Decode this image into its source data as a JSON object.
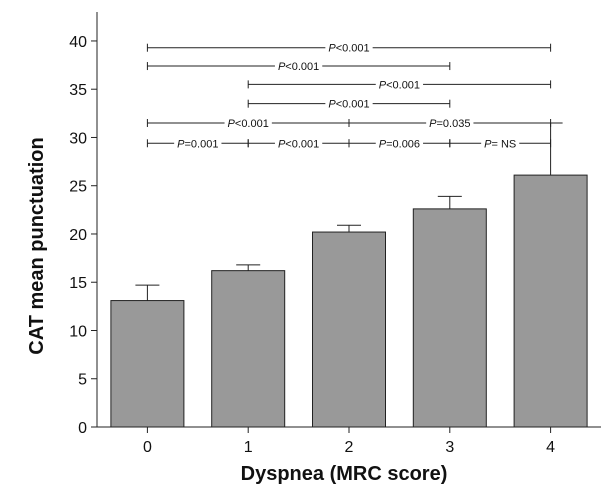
{
  "chart_data": {
    "type": "bar",
    "title": "",
    "xlabel": "Dyspnea (MRC score)",
    "ylabel": "CAT mean punctuation",
    "categories": [
      "0",
      "1",
      "2",
      "3",
      "4"
    ],
    "values": [
      13.1,
      16.2,
      20.2,
      22.6,
      26.1
    ],
    "error_upper": [
      14.7,
      16.8,
      20.9,
      23.9,
      31.5
    ],
    "ylim": [
      0,
      43
    ],
    "yticks": [
      0,
      5,
      10,
      15,
      20,
      25,
      30,
      35,
      40
    ],
    "bar_color": "#999999",
    "grid": false,
    "legend": "none",
    "significance": [
      {
        "from": "0",
        "to": "4",
        "y": 39.3,
        "prefix": "P",
        "rest": "<0.001"
      },
      {
        "from": "0",
        "to": "3",
        "y": 37.4,
        "prefix": "P",
        "rest": "<0.001"
      },
      {
        "from": "1",
        "to": "4",
        "y": 35.5,
        "prefix": "P",
        "rest": "<0.001"
      },
      {
        "from": "1",
        "to": "3",
        "y": 33.5,
        "prefix": "P",
        "rest": "<0.001"
      },
      {
        "from": "0",
        "to": "2",
        "y": 31.5,
        "prefix": "P",
        "rest": "<0.001"
      },
      {
        "from": "2",
        "to": "4",
        "y": 31.5,
        "prefix": "P",
        "rest": "=0.035"
      },
      {
        "from": "0",
        "to": "1",
        "y": 29.4,
        "prefix": "P",
        "rest": "=0.001"
      },
      {
        "from": "1",
        "to": "2",
        "y": 29.4,
        "prefix": "P",
        "rest": "<0.001"
      },
      {
        "from": "2",
        "to": "3",
        "y": 29.4,
        "prefix": "P",
        "rest": "=0.006"
      },
      {
        "from": "3",
        "to": "4",
        "y": 29.4,
        "prefix": "P",
        "rest": "= NS"
      }
    ]
  }
}
